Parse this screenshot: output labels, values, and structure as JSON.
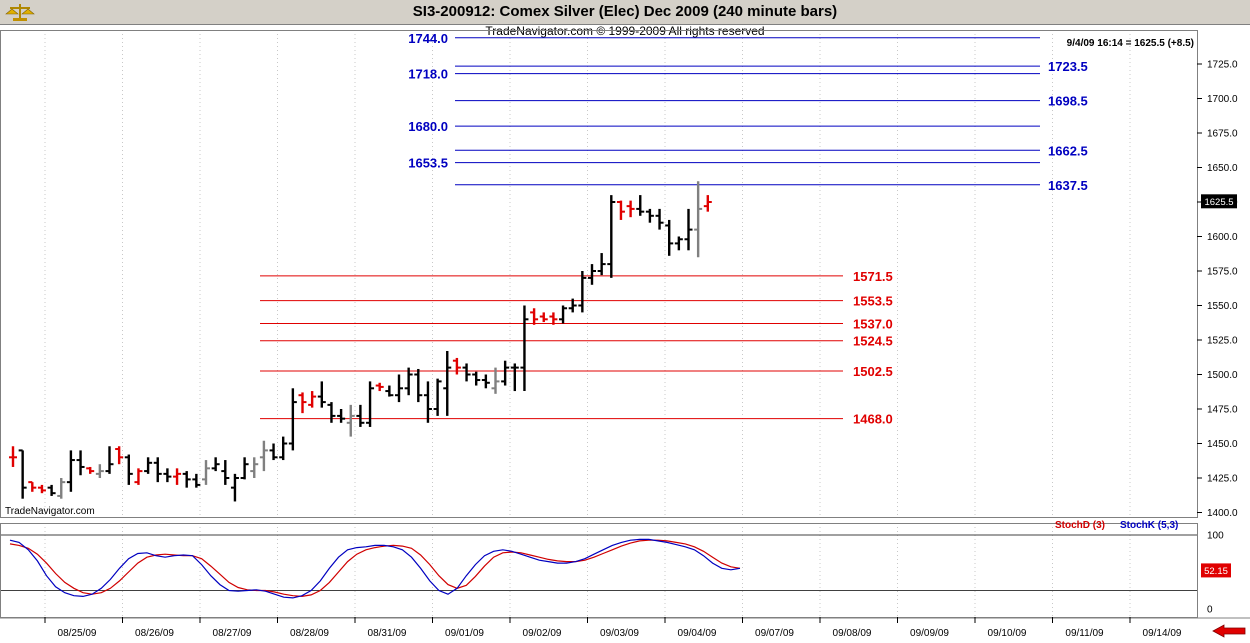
{
  "window": {
    "title": "SI3-200912:  Comex Silver (Elec) Dec 2009  (240 minute bars)",
    "copyright": "TradeNavigator.com © 1999-2009 All rights reserved",
    "watermark": "TradeNavigator.com",
    "readout": "9/4/09 16:14 = 1625.5 (+8.5)",
    "logo_icon": "gold-scale-icon",
    "nav_icon": "red-left-arrow-icon"
  },
  "colors": {
    "bar_up": "#000000",
    "bar_down_red": "#e00000",
    "bar_gray": "#808080",
    "blue_level": "#0000c0",
    "red_level": "#e00000",
    "stochD": "#d00000",
    "stochK": "#0000c0"
  },
  "chart_data": {
    "type": "ohlc",
    "title": "SI3-200912:  Comex Silver (Elec) Dec 2009  (240 minute bars)",
    "ylim": [
      1400,
      1740
    ],
    "yticks": [
      "1400.0",
      "1425.0",
      "1450.0",
      "1475.0",
      "1500.0",
      "1525.0",
      "1550.0",
      "1575.0",
      "1600.0",
      "1625.0",
      "1650.0",
      "1675.0",
      "1700.0",
      "1725.0"
    ],
    "last_price_label": "1625.5",
    "xticks": [
      "08/25/09",
      "08/26/09",
      "08/27/09",
      "08/28/09",
      "08/31/09",
      "09/01/09",
      "09/02/09",
      "09/03/09",
      "09/04/09",
      "09/07/09",
      "09/08/09",
      "09/09/09",
      "09/10/09",
      "09/11/09",
      "09/14/09"
    ],
    "bars": [
      {
        "o": 1440,
        "h": 1448,
        "l": 1433,
        "c": 1440,
        "k": "r"
      },
      {
        "o": 1445,
        "h": 1445,
        "l": 1410,
        "c": 1418,
        "k": "b"
      },
      {
        "o": 1422,
        "h": 1422,
        "l": 1415,
        "c": 1418,
        "k": "r"
      },
      {
        "o": 1418,
        "h": 1420,
        "l": 1414,
        "c": 1416,
        "k": "r"
      },
      {
        "o": 1418,
        "h": 1420,
        "l": 1412,
        "c": 1414,
        "k": "b"
      },
      {
        "o": 1412,
        "h": 1425,
        "l": 1410,
        "c": 1422,
        "k": "g"
      },
      {
        "o": 1422,
        "h": 1445,
        "l": 1415,
        "c": 1438,
        "k": "b"
      },
      {
        "o": 1438,
        "h": 1445,
        "l": 1427,
        "c": 1433,
        "k": "b"
      },
      {
        "o": 1432,
        "h": 1433,
        "l": 1428,
        "c": 1430,
        "k": "r"
      },
      {
        "o": 1428,
        "h": 1435,
        "l": 1425,
        "c": 1430,
        "k": "g"
      },
      {
        "o": 1430,
        "h": 1448,
        "l": 1428,
        "c": 1435,
        "k": "b"
      },
      {
        "o": 1446,
        "h": 1448,
        "l": 1435,
        "c": 1440,
        "k": "r"
      },
      {
        "o": 1440,
        "h": 1442,
        "l": 1420,
        "c": 1428,
        "k": "b"
      },
      {
        "o": 1422,
        "h": 1432,
        "l": 1420,
        "c": 1430,
        "k": "r"
      },
      {
        "o": 1430,
        "h": 1440,
        "l": 1428,
        "c": 1436,
        "k": "b"
      },
      {
        "o": 1436,
        "h": 1440,
        "l": 1422,
        "c": 1428,
        "k": "b"
      },
      {
        "o": 1428,
        "h": 1432,
        "l": 1422,
        "c": 1426,
        "k": "b"
      },
      {
        "o": 1426,
        "h": 1432,
        "l": 1420,
        "c": 1428,
        "k": "r"
      },
      {
        "o": 1428,
        "h": 1430,
        "l": 1418,
        "c": 1424,
        "k": "b"
      },
      {
        "o": 1424,
        "h": 1428,
        "l": 1418,
        "c": 1420,
        "k": "b"
      },
      {
        "o": 1424,
        "h": 1438,
        "l": 1420,
        "c": 1432,
        "k": "g"
      },
      {
        "o": 1432,
        "h": 1440,
        "l": 1430,
        "c": 1435,
        "k": "b"
      },
      {
        "o": 1430,
        "h": 1438,
        "l": 1420,
        "c": 1425,
        "k": "b"
      },
      {
        "o": 1418,
        "h": 1428,
        "l": 1408,
        "c": 1425,
        "k": "b"
      },
      {
        "o": 1425,
        "h": 1440,
        "l": 1424,
        "c": 1435,
        "k": "b"
      },
      {
        "o": 1430,
        "h": 1440,
        "l": 1425,
        "c": 1435,
        "k": "g"
      },
      {
        "o": 1440,
        "h": 1452,
        "l": 1430,
        "c": 1445,
        "k": "g"
      },
      {
        "o": 1445,
        "h": 1450,
        "l": 1438,
        "c": 1440,
        "k": "b"
      },
      {
        "o": 1440,
        "h": 1455,
        "l": 1438,
        "c": 1450,
        "k": "b"
      },
      {
        "o": 1450,
        "h": 1490,
        "l": 1445,
        "c": 1480,
        "k": "b"
      },
      {
        "o": 1485,
        "h": 1487,
        "l": 1472,
        "c": 1480,
        "k": "r"
      },
      {
        "o": 1478,
        "h": 1488,
        "l": 1476,
        "c": 1484,
        "k": "r"
      },
      {
        "o": 1484,
        "h": 1495,
        "l": 1476,
        "c": 1480,
        "k": "b"
      },
      {
        "o": 1478,
        "h": 1480,
        "l": 1465,
        "c": 1470,
        "k": "b"
      },
      {
        "o": 1470,
        "h": 1475,
        "l": 1465,
        "c": 1468,
        "k": "b"
      },
      {
        "o": 1465,
        "h": 1478,
        "l": 1455,
        "c": 1470,
        "k": "g"
      },
      {
        "o": 1470,
        "h": 1478,
        "l": 1462,
        "c": 1465,
        "k": "b"
      },
      {
        "o": 1465,
        "h": 1495,
        "l": 1462,
        "c": 1490,
        "k": "b"
      },
      {
        "o": 1492,
        "h": 1494,
        "l": 1488,
        "c": 1491,
        "k": "r"
      },
      {
        "o": 1488,
        "h": 1492,
        "l": 1484,
        "c": 1485,
        "k": "b"
      },
      {
        "o": 1485,
        "h": 1500,
        "l": 1480,
        "c": 1490,
        "k": "b"
      },
      {
        "o": 1490,
        "h": 1505,
        "l": 1485,
        "c": 1500,
        "k": "b"
      },
      {
        "o": 1500,
        "h": 1504,
        "l": 1480,
        "c": 1485,
        "k": "b"
      },
      {
        "o": 1485,
        "h": 1495,
        "l": 1465,
        "c": 1475,
        "k": "b"
      },
      {
        "o": 1475,
        "h": 1497,
        "l": 1470,
        "c": 1495,
        "k": "b"
      },
      {
        "o": 1490,
        "h": 1517,
        "l": 1470,
        "c": 1505,
        "k": "b"
      },
      {
        "o": 1510,
        "h": 1512,
        "l": 1500,
        "c": 1505,
        "k": "r"
      },
      {
        "o": 1505,
        "h": 1508,
        "l": 1495,
        "c": 1500,
        "k": "b"
      },
      {
        "o": 1500,
        "h": 1502,
        "l": 1492,
        "c": 1496,
        "k": "b"
      },
      {
        "o": 1496,
        "h": 1500,
        "l": 1490,
        "c": 1494,
        "k": "b"
      },
      {
        "o": 1490,
        "h": 1505,
        "l": 1486,
        "c": 1495,
        "k": "g"
      },
      {
        "o": 1495,
        "h": 1510,
        "l": 1492,
        "c": 1505,
        "k": "b"
      },
      {
        "o": 1505,
        "h": 1508,
        "l": 1488,
        "c": 1505,
        "k": "b"
      },
      {
        "o": 1505,
        "h": 1550,
        "l": 1488,
        "c": 1540,
        "k": "b"
      },
      {
        "o": 1545,
        "h": 1548,
        "l": 1536,
        "c": 1540,
        "k": "r"
      },
      {
        "o": 1542,
        "h": 1545,
        "l": 1538,
        "c": 1540,
        "k": "r"
      },
      {
        "o": 1542,
        "h": 1545,
        "l": 1536,
        "c": 1540,
        "k": "r"
      },
      {
        "o": 1540,
        "h": 1550,
        "l": 1537,
        "c": 1548,
        "k": "b"
      },
      {
        "o": 1548,
        "h": 1555,
        "l": 1545,
        "c": 1550,
        "k": "b"
      },
      {
        "o": 1550,
        "h": 1575,
        "l": 1545,
        "c": 1570,
        "k": "b"
      },
      {
        "o": 1570,
        "h": 1580,
        "l": 1565,
        "c": 1575,
        "k": "b"
      },
      {
        "o": 1575,
        "h": 1588,
        "l": 1572,
        "c": 1580,
        "k": "b"
      },
      {
        "o": 1580,
        "h": 1630,
        "l": 1570,
        "c": 1625,
        "k": "b"
      },
      {
        "o": 1625,
        "h": 1626,
        "l": 1612,
        "c": 1618,
        "k": "r"
      },
      {
        "o": 1622,
        "h": 1626,
        "l": 1614,
        "c": 1620,
        "k": "r"
      },
      {
        "o": 1620,
        "h": 1630,
        "l": 1615,
        "c": 1618,
        "k": "b"
      },
      {
        "o": 1618,
        "h": 1620,
        "l": 1610,
        "c": 1615,
        "k": "b"
      },
      {
        "o": 1615,
        "h": 1620,
        "l": 1605,
        "c": 1610,
        "k": "b"
      },
      {
        "o": 1608,
        "h": 1612,
        "l": 1586,
        "c": 1595,
        "k": "b"
      },
      {
        "o": 1595,
        "h": 1600,
        "l": 1590,
        "c": 1598,
        "k": "b"
      },
      {
        "o": 1598,
        "h": 1620,
        "l": 1590,
        "c": 1605,
        "k": "b"
      },
      {
        "o": 1605,
        "h": 1640,
        "l": 1585,
        "c": 1620,
        "k": "g"
      },
      {
        "o": 1622,
        "h": 1630,
        "l": 1618,
        "c": 1625,
        "k": "r"
      }
    ],
    "blue_levels": [
      {
        "label": "1744.0",
        "value": 1744.0
      },
      {
        "label": "1723.5",
        "value": 1723.5
      },
      {
        "label": "1718.0",
        "value": 1718.0
      },
      {
        "label": "1698.5",
        "value": 1698.5
      },
      {
        "label": "1680.0",
        "value": 1680.0
      },
      {
        "label": "1662.5",
        "value": 1662.5
      },
      {
        "label": "1653.5",
        "value": 1653.5
      },
      {
        "label": "1637.5",
        "value": 1637.5
      }
    ],
    "red_levels": [
      {
        "label": "1571.5",
        "value": 1571.5
      },
      {
        "label": "1553.5",
        "value": 1553.5
      },
      {
        "label": "1537.0",
        "value": 1537.0
      },
      {
        "label": "1524.5",
        "value": 1524.5
      },
      {
        "label": "1502.5",
        "value": 1502.5
      },
      {
        "label": "1468.0",
        "value": 1468.0
      }
    ],
    "stochastic": {
      "legend_d": "StochD (3)",
      "legend_k": "StochK (5,3)",
      "ylim": [
        -10,
        110
      ],
      "yticks": [
        "100",
        "50",
        "0"
      ],
      "last_value_label": "52.15",
      "stochK": [
        93,
        90,
        80,
        65,
        45,
        30,
        22,
        18,
        17,
        20,
        28,
        40,
        55,
        68,
        75,
        76,
        72,
        70,
        72,
        73,
        72,
        60,
        45,
        33,
        25,
        24,
        25,
        26,
        24,
        20,
        16,
        15,
        18,
        25,
        38,
        55,
        70,
        80,
        83,
        84,
        86,
        86,
        84,
        80,
        70,
        55,
        38,
        25,
        20,
        28,
        45,
        60,
        72,
        78,
        80,
        78,
        74,
        70,
        66,
        64,
        62,
        62,
        64,
        68,
        74,
        80,
        86,
        90,
        93,
        94,
        94,
        92,
        90,
        87,
        84,
        80,
        72,
        62,
        55,
        53,
        55
      ],
      "stochD": [
        88,
        86,
        82,
        74,
        62,
        48,
        36,
        28,
        22,
        20,
        22,
        28,
        38,
        50,
        62,
        70,
        73,
        74,
        73,
        72,
        72,
        68,
        58,
        47,
        36,
        29,
        26,
        25,
        25,
        23,
        20,
        18,
        17,
        19,
        25,
        36,
        50,
        64,
        74,
        80,
        83,
        85,
        86,
        85,
        82,
        73,
        60,
        45,
        33,
        28,
        32,
        44,
        58,
        70,
        76,
        77,
        76,
        73,
        70,
        67,
        65,
        64,
        64,
        66,
        70,
        75,
        80,
        85,
        89,
        92,
        93,
        93,
        92,
        90,
        88,
        84,
        78,
        70,
        62,
        57,
        55
      ]
    }
  }
}
